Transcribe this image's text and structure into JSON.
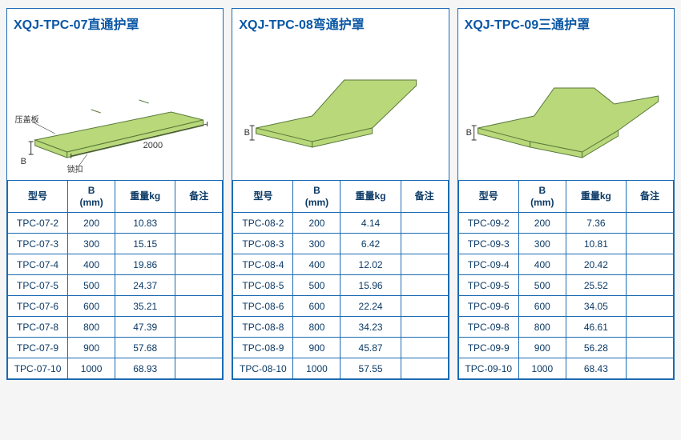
{
  "colors": {
    "border": "#1a6ab3",
    "title": "#0b57a5",
    "text": "#0b3a66",
    "shape_fill": "#b8d87a",
    "shape_stroke": "#5a7a3a",
    "dim_line": "#333333"
  },
  "headers": {
    "model": "型号",
    "b": "B\n(mm)",
    "weight": "重量kg",
    "note": "备注"
  },
  "panels": [
    {
      "title": "XQJ-TPC-07直通护罩",
      "diagram": "straight",
      "dim_labels": {
        "length": "2000",
        "width": "B",
        "a": "压盖板",
        "b": "锁扣"
      },
      "rows": [
        {
          "model": "TPC-07-2",
          "b": "200",
          "wt": "10.83",
          "note": ""
        },
        {
          "model": "TPC-07-3",
          "b": "300",
          "wt": "15.15",
          "note": ""
        },
        {
          "model": "TPC-07-4",
          "b": "400",
          "wt": "19.86",
          "note": ""
        },
        {
          "model": "TPC-07-5",
          "b": "500",
          "wt": "24.37",
          "note": ""
        },
        {
          "model": "TPC-07-6",
          "b": "600",
          "wt": "35.21",
          "note": ""
        },
        {
          "model": "TPC-07-8",
          "b": "800",
          "wt": "47.39",
          "note": ""
        },
        {
          "model": "TPC-07-9",
          "b": "900",
          "wt": "57.68",
          "note": ""
        },
        {
          "model": "TPC-07-10",
          "b": "1000",
          "wt": "68.93",
          "note": ""
        }
      ]
    },
    {
      "title": "XQJ-TPC-08弯通护罩",
      "diagram": "bend",
      "dim_labels": {
        "width": "B"
      },
      "rows": [
        {
          "model": "TPC-08-2",
          "b": "200",
          "wt": "4.14",
          "note": ""
        },
        {
          "model": "TPC-08-3",
          "b": "300",
          "wt": "6.42",
          "note": ""
        },
        {
          "model": "TPC-08-4",
          "b": "400",
          "wt": "12.02",
          "note": ""
        },
        {
          "model": "TPC-08-5",
          "b": "500",
          "wt": "15.96",
          "note": ""
        },
        {
          "model": "TPC-08-6",
          "b": "600",
          "wt": "22.24",
          "note": ""
        },
        {
          "model": "TPC-08-8",
          "b": "800",
          "wt": "34.23",
          "note": ""
        },
        {
          "model": "TPC-08-9",
          "b": "900",
          "wt": "45.87",
          "note": ""
        },
        {
          "model": "TPC-08-10",
          "b": "1000",
          "wt": "57.55",
          "note": ""
        }
      ]
    },
    {
      "title": "XQJ-TPC-09三通护罩",
      "diagram": "tee",
      "dim_labels": {
        "width": "B"
      },
      "rows": [
        {
          "model": "TPC-09-2",
          "b": "200",
          "wt": "7.36",
          "note": ""
        },
        {
          "model": "TPC-09-3",
          "b": "300",
          "wt": "10.81",
          "note": ""
        },
        {
          "model": "TPC-09-4",
          "b": "400",
          "wt": "20.42",
          "note": ""
        },
        {
          "model": "TPC-09-5",
          "b": "500",
          "wt": "25.52",
          "note": ""
        },
        {
          "model": "TPC-09-6",
          "b": "600",
          "wt": "34.05",
          "note": ""
        },
        {
          "model": "TPC-09-8",
          "b": "800",
          "wt": "46.61",
          "note": ""
        },
        {
          "model": "TPC-09-9",
          "b": "900",
          "wt": "56.28",
          "note": ""
        },
        {
          "model": "TPC-09-10",
          "b": "1000",
          "wt": "68.43",
          "note": ""
        }
      ]
    }
  ]
}
